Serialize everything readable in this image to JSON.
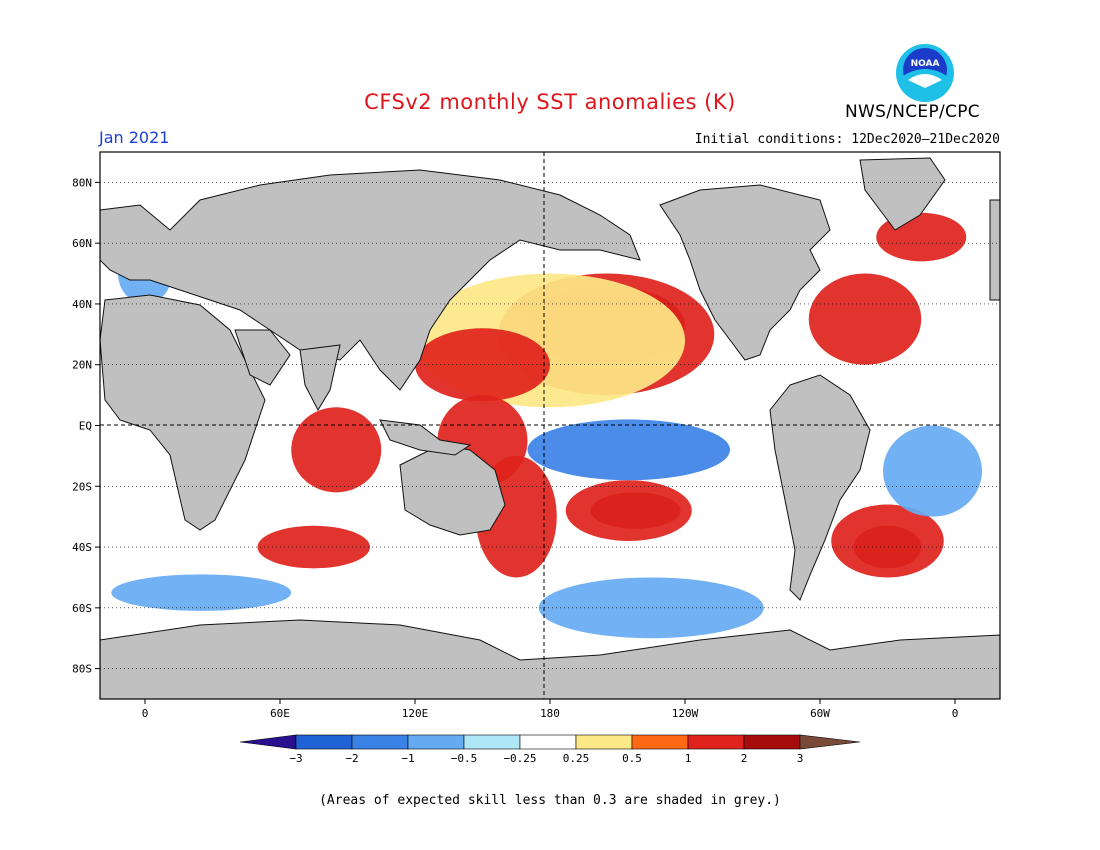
{
  "title": "CFSv2 monthly SST anomalies (K)",
  "agency": "NWS/NCEP/CPC",
  "logo_text": "NOAA",
  "valid_month": "Jan 2021",
  "initial_conditions": "Initial conditions: 12Dec2020–21Dec2020",
  "footnote": "(Areas of expected skill less than 0.3 are shaded in grey.)",
  "map": {
    "lat_labels": [
      "80N",
      "60N",
      "40N",
      "20N",
      "EQ",
      "20S",
      "40S",
      "60S",
      "80S"
    ],
    "lat_values": [
      80,
      60,
      40,
      20,
      0,
      -20,
      -40,
      -60,
      -80
    ],
    "lon_labels": [
      "0",
      "60E",
      "120E",
      "180",
      "120W",
      "60W",
      "0"
    ],
    "lon_values": [
      0,
      60,
      120,
      180,
      240,
      300,
      360
    ],
    "lon_range": [
      -20,
      380
    ],
    "lat_range": [
      -90,
      90
    ],
    "land_color": "#c0c0c0"
  },
  "colorbar": {
    "labels": [
      "−3",
      "−2",
      "−1",
      "−0.5",
      "−0.25",
      "0.25",
      "0.5",
      "1",
      "2",
      "3"
    ],
    "colors": [
      "#2a0f8f",
      "#1f63d6",
      "#3b82e6",
      "#66aaf2",
      "#aee6f6",
      "#ffffff",
      "#fde887",
      "#fe6a13",
      "#e0231c",
      "#a50d0d",
      "#7a4a38"
    ]
  },
  "anomaly_regions": [
    {
      "cls": 3,
      "lon": 205,
      "lat": 33,
      "rx": 35,
      "ry": 13
    },
    {
      "cls": 2,
      "lon": 205,
      "lat": 30,
      "rx": 48,
      "ry": 20
    },
    {
      "cls": 1,
      "lon": 180,
      "lat": 28,
      "rx": 60,
      "ry": 22
    },
    {
      "cls": 2,
      "lon": 150,
      "lat": 20,
      "rx": 30,
      "ry": 12
    },
    {
      "cls": 2,
      "lon": 150,
      "lat": -5,
      "rx": 20,
      "ry": 15
    },
    {
      "cls": 2,
      "lon": 165,
      "lat": -30,
      "rx": 18,
      "ry": 20
    },
    {
      "cls": 3,
      "lon": 218,
      "lat": -28,
      "rx": 20,
      "ry": 6
    },
    {
      "cls": 2,
      "lon": 215,
      "lat": -28,
      "rx": 28,
      "ry": 10
    },
    {
      "cls": -2,
      "lon": 215,
      "lat": -8,
      "rx": 45,
      "ry": 10
    },
    {
      "cls": -1,
      "lon": 225,
      "lat": -60,
      "rx": 50,
      "ry": 10
    },
    {
      "cls": -1,
      "lon": 25,
      "lat": -55,
      "rx": 40,
      "ry": 6
    },
    {
      "cls": 2,
      "lon": 75,
      "lat": -40,
      "rx": 25,
      "ry": 7
    },
    {
      "cls": 2,
      "lon": 85,
      "lat": -8,
      "rx": 20,
      "ry": 14
    },
    {
      "cls": 3,
      "lon": 330,
      "lat": -40,
      "rx": 15,
      "ry": 7
    },
    {
      "cls": 2,
      "lon": 330,
      "lat": -38,
      "rx": 25,
      "ry": 12
    },
    {
      "cls": 2,
      "lon": 320,
      "lat": 35,
      "rx": 25,
      "ry": 15
    },
    {
      "cls": -1,
      "lon": 350,
      "lat": -15,
      "rx": 22,
      "ry": 15
    },
    {
      "cls": -1,
      "lon": 0,
      "lat": 50,
      "rx": 12,
      "ry": 10
    },
    {
      "cls": 2,
      "lon": 345,
      "lat": 62,
      "rx": 20,
      "ry": 8
    }
  ]
}
